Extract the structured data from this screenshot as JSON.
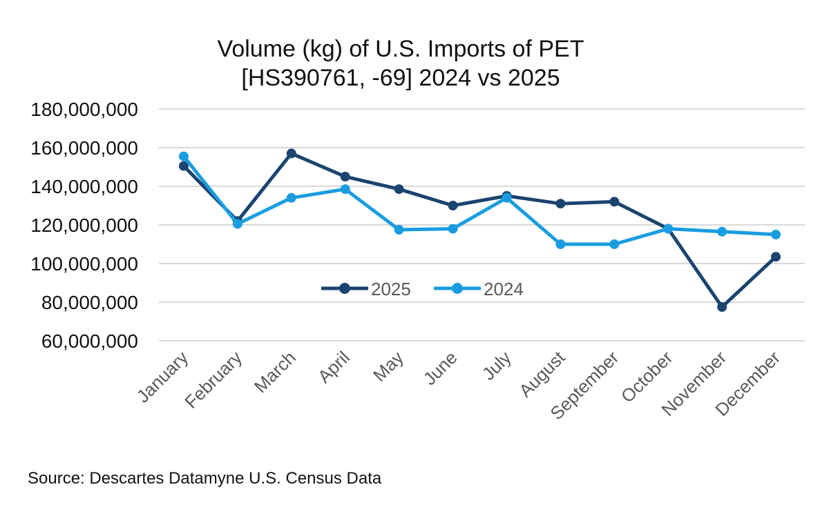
{
  "chart_data": {
    "type": "line",
    "title": "Volume (kg) of U.S. Imports of PET [HS390761, -69] 2024 vs 2025",
    "title_lines": [
      "Volume (kg) of U.S. Imports of PET",
      "[HS390761, -69] 2024 vs 2025"
    ],
    "xlabel": "",
    "ylabel": "",
    "categories": [
      "January",
      "February",
      "March",
      "April",
      "May",
      "June",
      "July",
      "August",
      "September",
      "October",
      "November",
      "December"
    ],
    "ylim": [
      60000000,
      180000000
    ],
    "yticks": [
      60000000,
      80000000,
      100000000,
      120000000,
      140000000,
      160000000,
      180000000
    ],
    "ytick_labels": [
      "60,000,000",
      "80,000,000",
      "100,000,000",
      "120,000,000",
      "140,000,000",
      "160,000,000",
      "180,000,000"
    ],
    "grid": true,
    "legend_position": "center",
    "series": [
      {
        "name": "2025",
        "color": "#1b4470",
        "values": [
          150500000,
          122000000,
          157000000,
          145000000,
          138500000,
          130000000,
          135000000,
          131000000,
          132000000,
          118000000,
          77500000,
          103500000
        ]
      },
      {
        "name": "2024",
        "color": "#1a9de0",
        "values": [
          155500000,
          120500000,
          134000000,
          138500000,
          117500000,
          118000000,
          134000000,
          110000000,
          110000000,
          118000000,
          116500000,
          115000000
        ]
      }
    ]
  },
  "source": "Source: Descartes Datamyne U.S. Census Data"
}
